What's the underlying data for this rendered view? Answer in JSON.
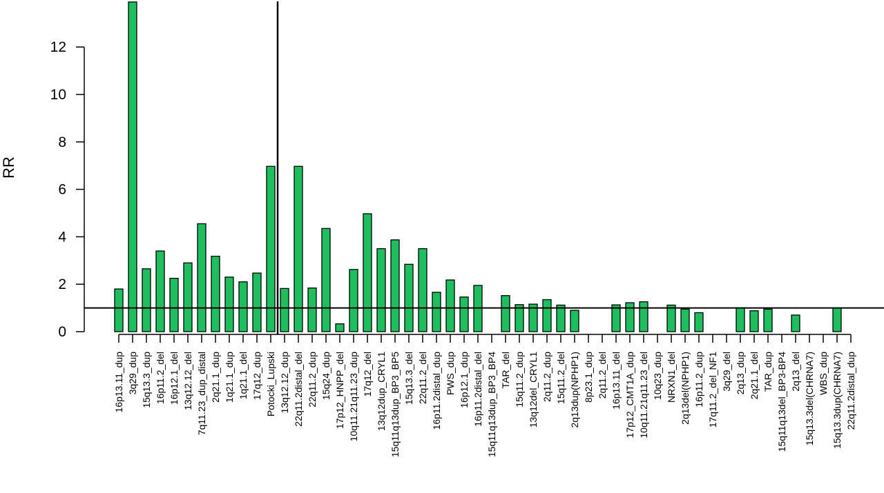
{
  "chart_data": {
    "type": "bar",
    "title": "",
    "xlabel": "",
    "ylabel": "RR",
    "ylim": [
      0,
      14
    ],
    "yticks": [
      0,
      2,
      4,
      6,
      8,
      10,
      12
    ],
    "reference_line_y": 1,
    "divider_after_category": "Potocki_Lupski",
    "grid": false,
    "colors": {
      "bar_fill": "#1fbf5f",
      "bar_stroke": "#000000"
    },
    "categories": [
      "16p13.11_dup",
      "3q29_dup",
      "15q13.3_dup",
      "16p11.2_del",
      "16p12.1_del",
      "13q12.12_del",
      "7q11.23_dup_distal",
      "2q21.1_dup",
      "1q21.1_dup",
      "1q21.1_del",
      "17q12_dup",
      "Potocki_Lupski",
      "13q12.12_dup",
      "22q11.2distal_del",
      "22q11.2_dup",
      "15q24_dup",
      "17p12_HNPP_del",
      "10q11.21q11.23_dup",
      "17q12_del",
      "13q12dup_CRYL1",
      "15q11q13dup_BP3_BP5",
      "15q13.3_del",
      "22q11.2_del",
      "16p11.2distal_dup",
      "PWS_dup",
      "16p12.1_dup",
      "16p11.2distal_del",
      "15q11q13dup_BP3_BP4",
      "TAR_del",
      "15q11.2_dup",
      "13q12del_CRYL1",
      "2q11.2_dup",
      "15q11.2_del",
      "2q13dup(NPHP1)",
      "8p23.1_dup",
      "2q11.2_del",
      "16p13.11_del",
      "17p12_CMT1A_dup",
      "10q11.21q11.23_del",
      "10q23_dup",
      "NRXN1_del",
      "2q13del(NPHP1)",
      "16p11.2_dup",
      "17q11.2_del_NF1",
      "3q29_del",
      "2q13_dup",
      "2q21.1_del",
      "TAR_dup",
      "15q11q13del_BP3-BP4",
      "2q13_del",
      "15q13.3del(CHRNA7)",
      "WBS_dup",
      "15q13.3dup(CHRNA7)",
      "22q11.2distal_dup"
    ],
    "values": [
      1.8,
      13.9,
      2.65,
      3.4,
      2.25,
      2.9,
      4.55,
      3.18,
      2.3,
      2.1,
      2.47,
      6.97,
      1.82,
      6.97,
      1.84,
      4.35,
      0.33,
      2.62,
      4.97,
      3.5,
      3.87,
      2.84,
      3.5,
      1.66,
      2.18,
      1.46,
      1.95,
      0.0,
      1.52,
      1.14,
      1.16,
      1.35,
      1.12,
      0.9,
      0.0,
      0.0,
      1.13,
      1.22,
      1.26,
      0.0,
      1.12,
      0.95,
      0.8,
      0.0,
      0.0,
      1.0,
      0.88,
      0.95,
      0.0,
      0.7,
      0.0,
      0.0,
      1.0,
      0.0
    ]
  }
}
